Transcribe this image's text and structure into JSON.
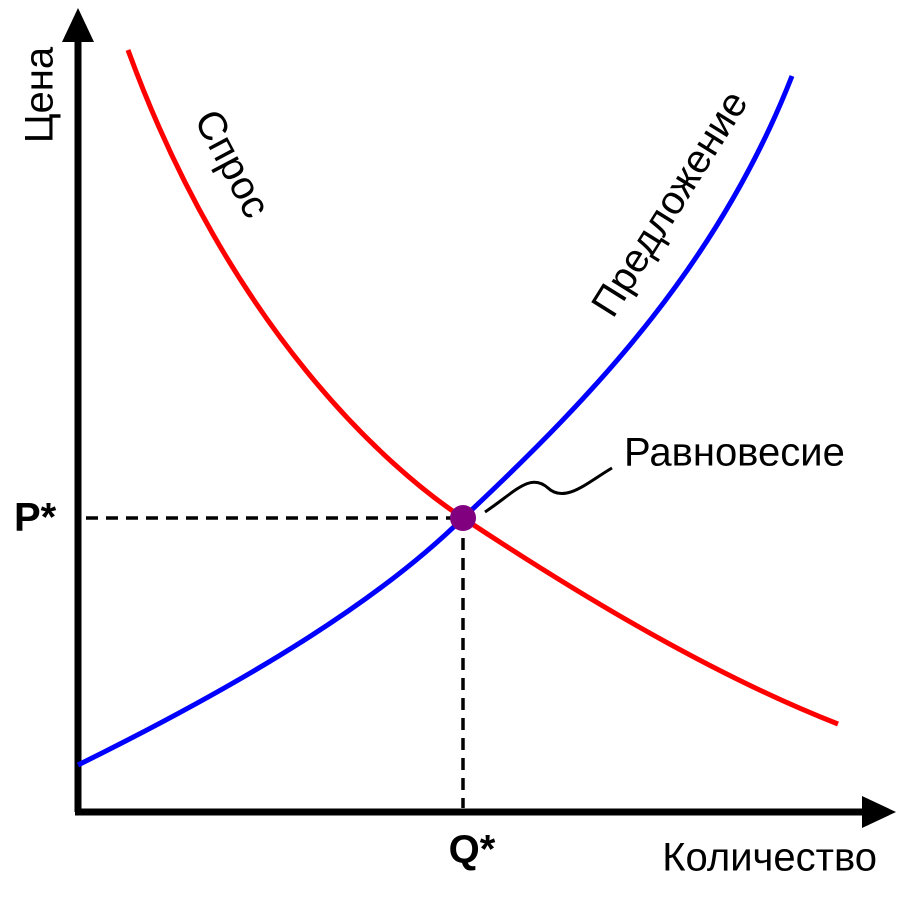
{
  "y_axis_label": "Цена",
  "x_axis_label": "Количество",
  "demand_label": "Спрос",
  "supply_label": "Предложение",
  "equilibrium_label": "Равновесие",
  "price_label": "P*",
  "quantity_label": "Q*"
}
